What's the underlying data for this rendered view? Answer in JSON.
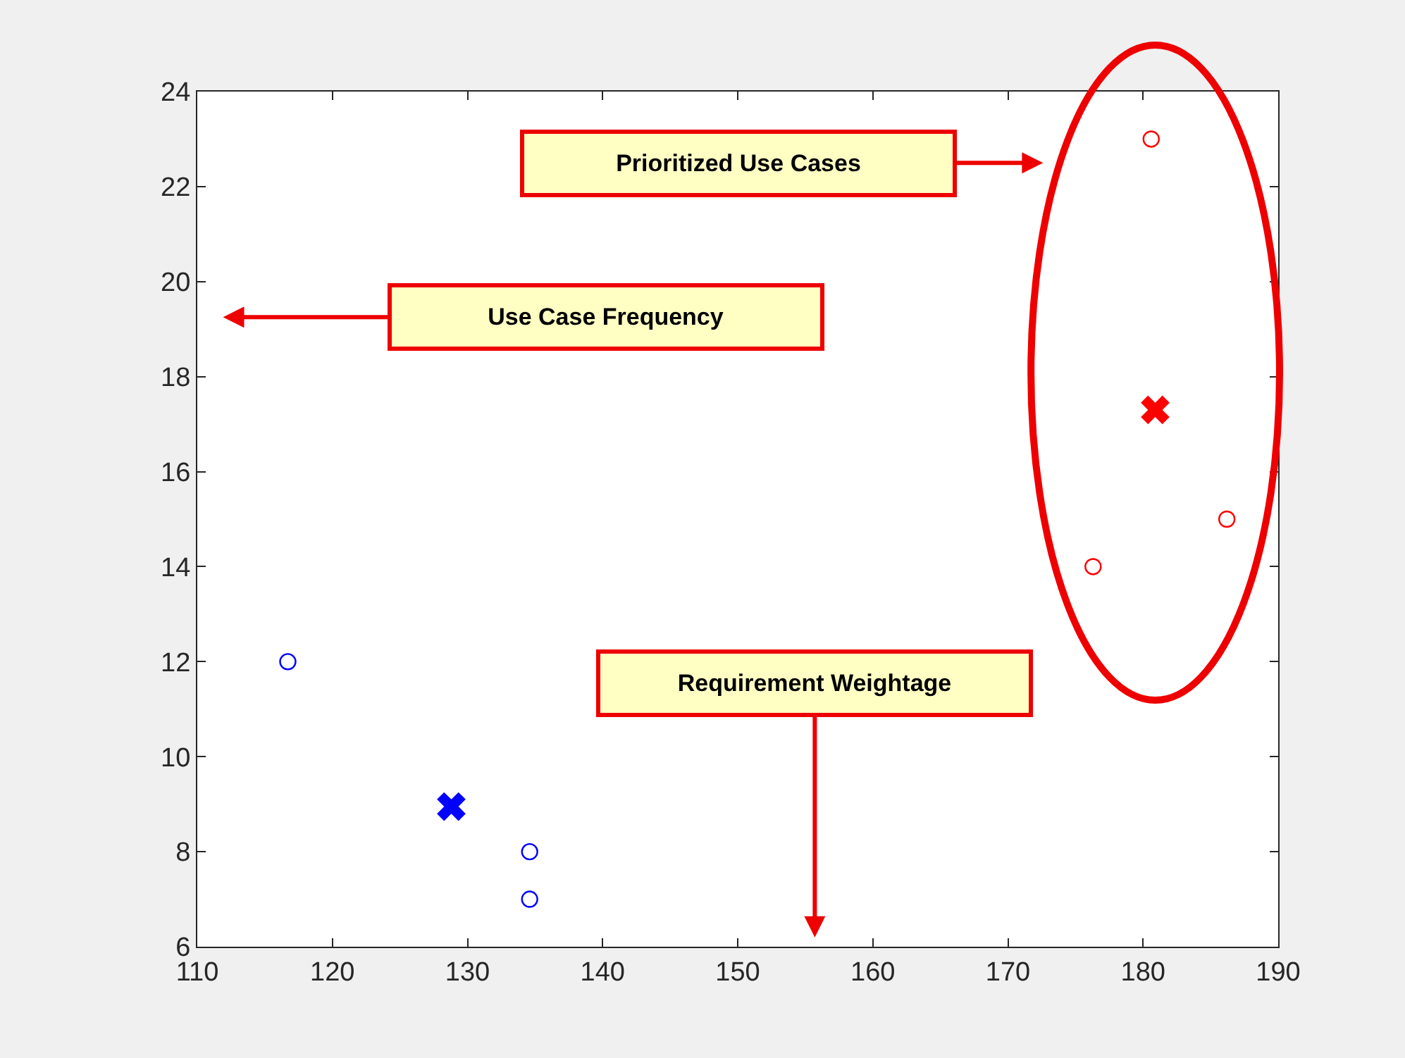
{
  "chart_data": {
    "type": "scatter",
    "xlim": [
      110,
      190
    ],
    "xticks": [
      110,
      120,
      130,
      140,
      150,
      160,
      170,
      180,
      190
    ],
    "ylim": [
      6,
      24
    ],
    "yticks": [
      6,
      8,
      10,
      12,
      14,
      16,
      18,
      20,
      22,
      24
    ],
    "grid": false,
    "series": [
      {
        "color": "#0000ff",
        "marker": "circle",
        "x": [
          116.7,
          134.6,
          134.6
        ],
        "values": [
          12,
          8,
          7
        ]
      },
      {
        "color": "#0000ff",
        "marker": "cross",
        "x": [
          128.8
        ],
        "values": [
          8.95
        ]
      },
      {
        "color": "#ff0000",
        "marker": "circle",
        "x": [
          180.6,
          176.3,
          186.2
        ],
        "values": [
          23,
          14,
          15
        ]
      },
      {
        "color": "#ff0000",
        "marker": "cross",
        "x": [
          180.9
        ],
        "values": [
          17.3
        ]
      }
    ],
    "annotations": [
      "Prioritized Use Cases",
      "Use Case Frequency",
      "Requirement Weightage"
    ]
  }
}
